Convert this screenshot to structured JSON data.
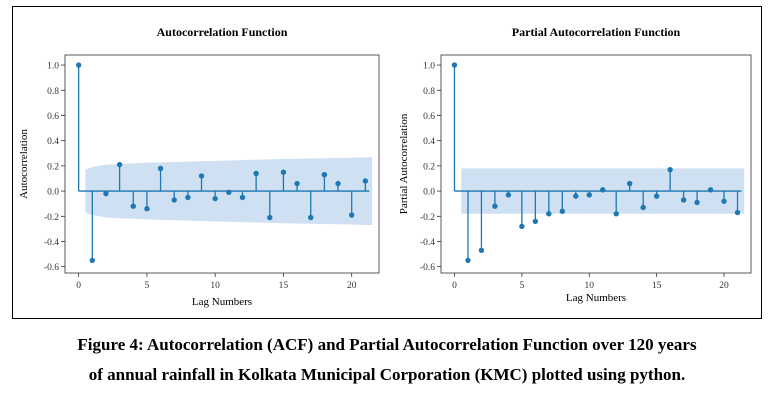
{
  "caption": {
    "line1": "Figure 4: Autocorrelation (ACF) and Partial Autocorrelation Function over 120 years",
    "line2": "of annual rainfall in Kolkata Municipal Corporation (KMC) plotted using python."
  },
  "colors": {
    "stem": "#1f77b4",
    "confidence_band": "#c6dbef",
    "baseline": "#1f77b4"
  },
  "chart_data": [
    {
      "type": "stem",
      "title": "Autocorrelation  Function",
      "xlabel": "Lag Numbers",
      "ylabel": "Autocorrelation",
      "xlim": [
        -1,
        22
      ],
      "ylim": [
        -0.65,
        1.08
      ],
      "xticks": [
        0,
        5,
        10,
        15,
        20
      ],
      "yticks": [
        -0.6,
        -0.4,
        -0.2,
        0.0,
        0.2,
        0.4,
        0.6,
        0.8,
        1.0
      ],
      "ytick_labels": [
        "-0.6",
        "-0.4",
        "-0.2",
        "0.0",
        "0.2",
        "0.4",
        "0.6",
        "0.8",
        "1.0"
      ],
      "grid": false,
      "lags": [
        0,
        1,
        2,
        3,
        4,
        5,
        6,
        7,
        8,
        9,
        10,
        11,
        12,
        13,
        14,
        15,
        16,
        17,
        18,
        19,
        20,
        21
      ],
      "values": [
        1.0,
        -0.55,
        -0.02,
        0.21,
        -0.12,
        -0.14,
        0.18,
        -0.07,
        -0.05,
        0.12,
        -0.06,
        -0.01,
        -0.05,
        0.14,
        -0.21,
        0.15,
        0.06,
        -0.21,
        0.13,
        0.06,
        -0.19,
        0.08
      ],
      "confidence_band": {
        "x": [
          0.5,
          1,
          2,
          3,
          5,
          10,
          15,
          20,
          21.5
        ],
        "upper": [
          0.17,
          0.19,
          0.21,
          0.215,
          0.225,
          0.24,
          0.255,
          0.265,
          0.27
        ],
        "lower": [
          -0.17,
          -0.19,
          -0.21,
          -0.215,
          -0.225,
          -0.24,
          -0.255,
          -0.265,
          -0.27
        ]
      }
    },
    {
      "type": "stem",
      "title": "Partial  Autocorrelation  Function",
      "xlabel": "Lag Numbers",
      "ylabel": "Partial  Autocorrelation",
      "xlim": [
        -1,
        22
      ],
      "ylim": [
        -0.65,
        1.08
      ],
      "xticks": [
        0,
        5,
        10,
        15,
        20
      ],
      "yticks": [
        -0.6,
        -0.4,
        -0.2,
        0.0,
        0.2,
        0.4,
        0.6,
        0.8,
        1.0
      ],
      "ytick_labels": [
        "-0.6",
        "-0.4",
        "-0.2",
        "0.0",
        "0.2",
        "0.4",
        "0.6",
        "0.8",
        "1.0"
      ],
      "grid": false,
      "lags": [
        0,
        1,
        2,
        3,
        4,
        5,
        6,
        7,
        8,
        9,
        10,
        11,
        12,
        13,
        14,
        15,
        16,
        17,
        18,
        19,
        20,
        21
      ],
      "values": [
        1.0,
        -0.55,
        -0.47,
        -0.12,
        -0.03,
        -0.28,
        -0.24,
        -0.18,
        -0.16,
        -0.04,
        -0.03,
        0.01,
        -0.18,
        0.06,
        -0.13,
        -0.04,
        0.17,
        -0.07,
        -0.09,
        0.01,
        -0.08,
        -0.17
      ],
      "confidence_band": {
        "x": [
          0.5,
          21.5
        ],
        "upper": [
          0.18,
          0.18
        ],
        "lower": [
          -0.18,
          -0.18
        ]
      }
    }
  ]
}
